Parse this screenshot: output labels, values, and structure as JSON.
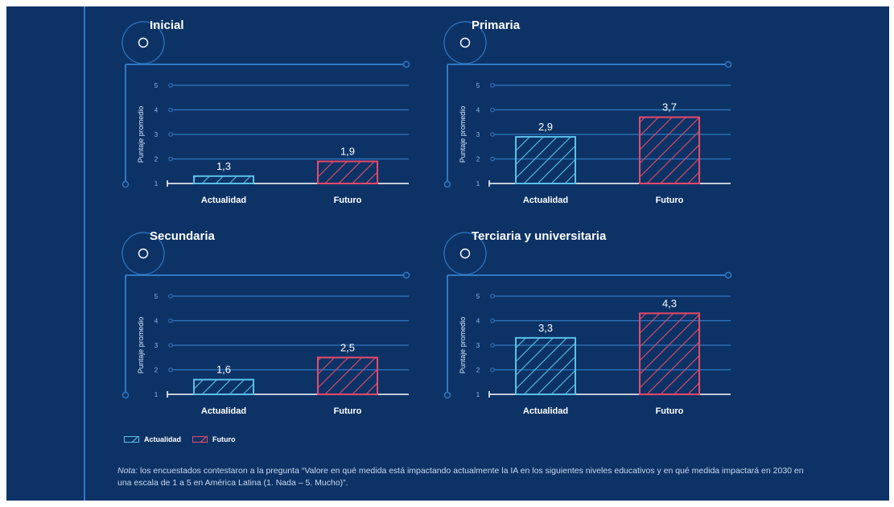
{
  "chart_data": [
    {
      "type": "bar",
      "title": "Inicial",
      "ylabel": "Puntaje promedio",
      "categories": [
        "Actualidad",
        "Futuro"
      ],
      "values": [
        1.3,
        1.9
      ],
      "value_labels": [
        "1,3",
        "1,9"
      ],
      "yticks": [
        "1",
        "2",
        "3",
        "4",
        "5"
      ],
      "ylim": [
        1,
        5
      ],
      "grid": true
    },
    {
      "type": "bar",
      "title": "Primaria",
      "ylabel": "Puntaje promedio",
      "categories": [
        "Actualidad",
        "Futuro"
      ],
      "values": [
        2.9,
        3.7
      ],
      "value_labels": [
        "2,9",
        "3,7"
      ],
      "yticks": [
        "1",
        "2",
        "3",
        "4",
        "5"
      ],
      "ylim": [
        1,
        5
      ],
      "grid": true
    },
    {
      "type": "bar",
      "title": "Secundaria",
      "ylabel": "Puntaje promedio",
      "categories": [
        "Actualidad",
        "Futuro"
      ],
      "values": [
        1.6,
        2.5
      ],
      "value_labels": [
        "1,6",
        "2,5"
      ],
      "yticks": [
        "1",
        "2",
        "3",
        "4",
        "5"
      ],
      "ylim": [
        1,
        5
      ],
      "grid": true
    },
    {
      "type": "bar",
      "title": "Terciaria y universitaria",
      "ylabel": "Puntaje promedio",
      "categories": [
        "Actualidad",
        "Futuro"
      ],
      "values": [
        3.3,
        4.3
      ],
      "value_labels": [
        "3,3",
        "4,3"
      ],
      "yticks": [
        "1",
        "2",
        "3",
        "4",
        "5"
      ],
      "ylim": [
        1,
        5
      ],
      "grid": true
    }
  ],
  "colors": {
    "background": "#0d3366",
    "actualidad": "#5bc0e6",
    "futuro": "#e8496b",
    "axis": "#2f78c4"
  },
  "legend": {
    "actualidad": "Actualidad",
    "futuro": "Futuro"
  },
  "note": {
    "label": "Nota:",
    "text": " los encuestados contestaron a la pregunta “Valore en qué medida está impactando actualmente la IA en los siguientes niveles educativos y en qué medida impactará en 2030 en una escala de 1 a 5 en América Latina (1. Nada – 5. Mucho)”."
  }
}
